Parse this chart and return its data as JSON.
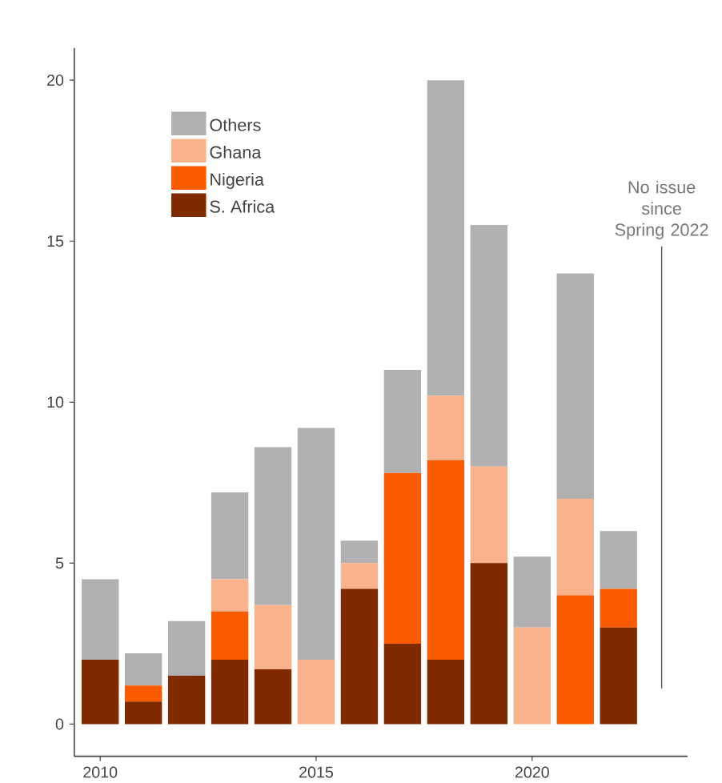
{
  "chart_data": {
    "type": "bar",
    "stacked": true,
    "x": [
      2010,
      2011,
      2012,
      2013,
      2014,
      2015,
      2016,
      2017,
      2018,
      2019,
      2020,
      2021,
      2022
    ],
    "series": [
      {
        "name": "S. Africa",
        "color": "#7f2a00",
        "values": [
          2,
          0.7,
          1.5,
          2,
          1.7,
          null,
          4.2,
          2.5,
          2,
          5,
          null,
          null,
          3
        ]
      },
      {
        "name": "Nigeria",
        "color": "#fa5a00",
        "values": [
          null,
          0.5,
          null,
          1.5,
          null,
          null,
          null,
          5.3,
          6.2,
          null,
          null,
          4,
          1.2
        ]
      },
      {
        "name": "Ghana",
        "color": "#f9b38c",
        "values": [
          null,
          null,
          null,
          1,
          2,
          2,
          0.8,
          null,
          2,
          3,
          3,
          3,
          null
        ]
      },
      {
        "name": "Others",
        "color": "#b1b1b1",
        "values": [
          2.5,
          1,
          1.7,
          2.7,
          4.9,
          7.2,
          0.7,
          3.2,
          9.8,
          7.5,
          2.2,
          7,
          1.8
        ]
      }
    ],
    "xlim": [
      2009.4,
      2023.6
    ],
    "xticks": [
      2010,
      2015,
      2020
    ],
    "ylim": [
      -1,
      21
    ],
    "yticks": [
      0,
      5,
      10,
      15,
      20
    ],
    "legend": "top left",
    "ref_lines": [
      {
        "axis": "x",
        "value": 2023,
        "label": "No issue since Spring 2022",
        "color": "#555555"
      }
    ]
  }
}
